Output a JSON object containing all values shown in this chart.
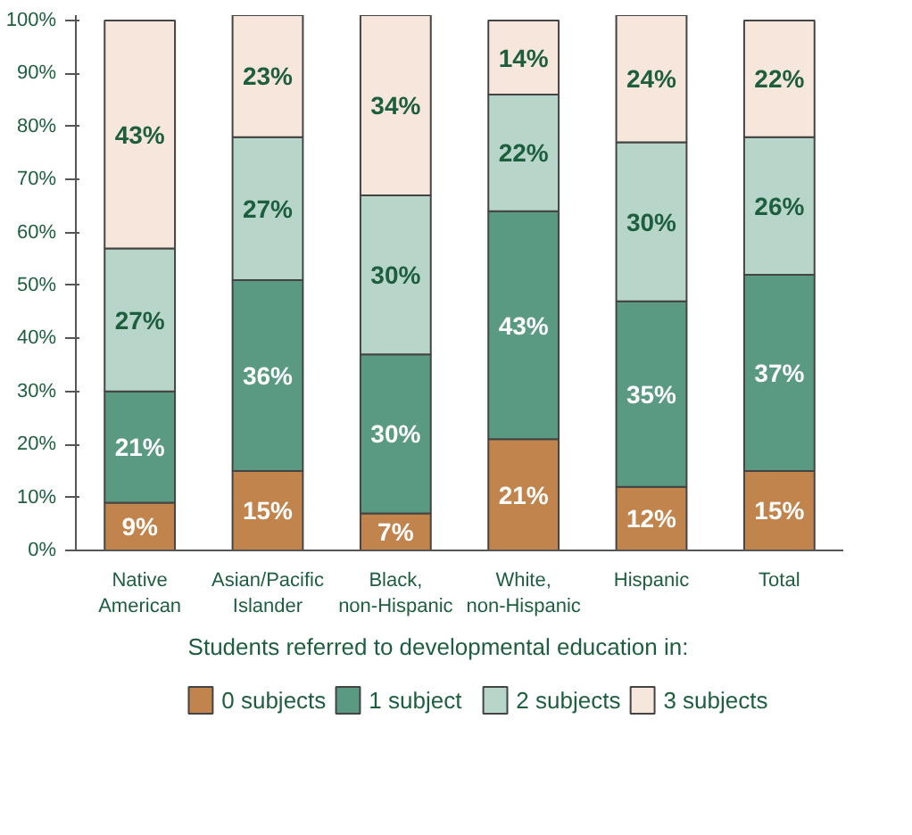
{
  "chart_data": {
    "type": "bar",
    "stacked": true,
    "categories": [
      "Native American",
      "Asian/Pacific Islander",
      "Black, non-Hispanic",
      "White, non-Hispanic",
      "Hispanic",
      "Total"
    ],
    "series": [
      {
        "name": "0 subjects",
        "color": "#c0844c",
        "values": [
          9,
          15,
          7,
          21,
          12,
          15
        ],
        "value_labels": [
          "9%",
          "15%",
          "7%",
          "21%",
          "12%",
          "15%"
        ]
      },
      {
        "name": "1 subject",
        "color": "#5b9a82",
        "values": [
          21,
          36,
          30,
          43,
          35,
          37
        ],
        "value_labels": [
          "21%",
          "36%",
          "30%",
          "43%",
          "35%",
          "37%"
        ]
      },
      {
        "name": "2 subjects",
        "color": "#b7d5c9",
        "values": [
          27,
          27,
          30,
          22,
          30,
          26
        ],
        "value_labels": [
          "27%",
          "27%",
          "30%",
          "22%",
          "30%",
          "26%"
        ]
      },
      {
        "name": "3 subjects",
        "color": "#f6e6dc",
        "values": [
          43,
          23,
          34,
          14,
          24,
          22
        ],
        "value_labels": [
          "43%",
          "23%",
          "34%",
          "14%",
          "24%",
          "22%"
        ]
      }
    ],
    "ylim": [
      0,
      101
    ],
    "yticks": [
      {
        "value": 0,
        "label": "0%"
      },
      {
        "value": 10,
        "label": "10%"
      },
      {
        "value": 20,
        "label": "20%"
      },
      {
        "value": 30,
        "label": "30%"
      },
      {
        "value": 40,
        "label": "40%"
      },
      {
        "value": 50,
        "label": "50%"
      },
      {
        "value": 60,
        "label": "60%"
      },
      {
        "value": 70,
        "label": "70%"
      },
      {
        "value": 80,
        "label": "80%"
      },
      {
        "value": 90,
        "label": "90%"
      },
      {
        "value": 100,
        "label": "100%"
      }
    ],
    "legend": "bottom",
    "legend_title": "Students referred to developmental education in:"
  }
}
